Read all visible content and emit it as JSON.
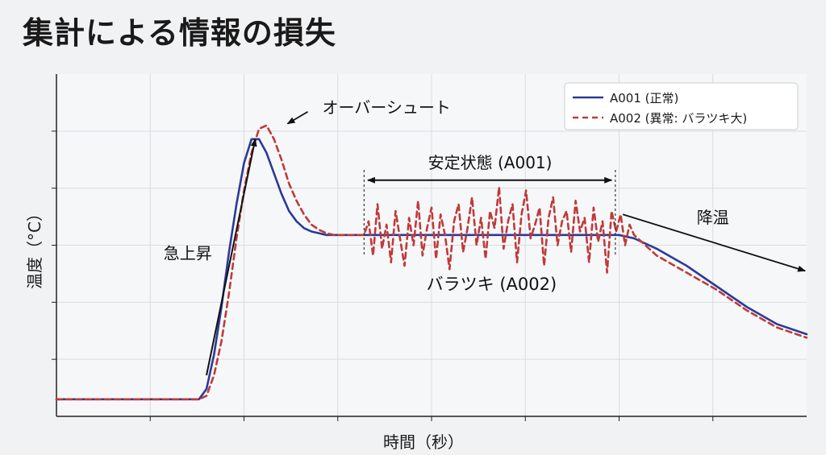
{
  "page": {
    "title": "集計による情報の損失"
  },
  "colors": {
    "a001": "#2b3a99",
    "a002": "#c03a3a",
    "grid": "#d9dce0",
    "axis": "#222222",
    "annotation": "#111111"
  },
  "chart_data": {
    "type": "line",
    "title": "",
    "xlabel": "時間（秒）",
    "ylabel": "温度（°C）",
    "xlim": [
      0,
      100
    ],
    "ylim": [
      0,
      100
    ],
    "grid": true,
    "legend_position": "top-right",
    "tick_labels_shown": false,
    "series": [
      {
        "name": "A001 (正常)",
        "color": "#2b3a99",
        "style": "solid",
        "x": [
          0,
          19,
          20,
          21,
          22,
          23,
          24,
          25,
          26,
          27,
          28,
          29,
          30,
          31,
          32,
          33,
          34,
          35,
          36,
          37,
          38,
          39,
          40,
          41,
          42,
          44,
          46,
          50,
          60,
          70,
          75,
          77,
          80,
          84,
          88,
          92,
          96,
          100
        ],
        "y": [
          5,
          5,
          8,
          18,
          32,
          48,
          62,
          74,
          81,
          81,
          77,
          71,
          65,
          60,
          57,
          55,
          54,
          53.5,
          53,
          53,
          53,
          53,
          53,
          53,
          53,
          53,
          53,
          53,
          53,
          53,
          53,
          52,
          49,
          44,
          38,
          32,
          27,
          24
        ]
      },
      {
        "name": "A002 (異常: バラツキ大)",
        "color": "#c03a3a",
        "style": "dashed",
        "x": [
          0,
          19,
          20,
          21,
          22,
          23,
          24,
          25,
          26,
          27,
          28,
          29,
          30,
          31,
          32,
          33,
          34,
          35,
          36,
          37,
          38,
          39,
          40,
          41,
          41.6,
          42.2,
          42.8,
          43.4,
          44,
          44.6,
          45.2,
          45.8,
          46.4,
          47,
          47.6,
          48.2,
          48.8,
          49.4,
          50,
          50.6,
          51.2,
          51.8,
          52.4,
          53,
          53.6,
          54.2,
          54.8,
          55.4,
          56,
          56.6,
          57.2,
          57.8,
          58.4,
          59,
          59.6,
          60.2,
          60.8,
          61.4,
          62,
          62.6,
          63.2,
          63.8,
          64.4,
          65,
          65.6,
          66.2,
          66.8,
          67.4,
          68,
          68.6,
          69.2,
          69.8,
          70.4,
          71,
          71.6,
          72.2,
          72.8,
          73.4,
          74,
          74.6,
          75.2,
          75.8,
          76.4,
          77,
          80,
          84,
          88,
          92,
          96,
          100
        ],
        "y": [
          5,
          5,
          6,
          12,
          22,
          36,
          52,
          66,
          77,
          84,
          85,
          81,
          75,
          68,
          63,
          59,
          56,
          54.5,
          53.5,
          53,
          53,
          53,
          53,
          53,
          57,
          47,
          62,
          49,
          56,
          45,
          60,
          52,
          44,
          58,
          50,
          63,
          47,
          55,
          61,
          46,
          59,
          53,
          43,
          57,
          62,
          48,
          55,
          64,
          50,
          58,
          46,
          60,
          55,
          67,
          49,
          57,
          62,
          45,
          59,
          66,
          52,
          56,
          61,
          44,
          58,
          64,
          50,
          57,
          60,
          48,
          63,
          54,
          58,
          45,
          61,
          51,
          57,
          42,
          60,
          54,
          59,
          50,
          56,
          53,
          47,
          42,
          37,
          31,
          26,
          23
        ]
      }
    ],
    "annotations": [
      {
        "text": "オーバーシュート"
      },
      {
        "text": "急上昇"
      },
      {
        "text": "安定状態 (A001)"
      },
      {
        "text": "バラツキ (A002)"
      },
      {
        "text": "降温"
      }
    ]
  }
}
